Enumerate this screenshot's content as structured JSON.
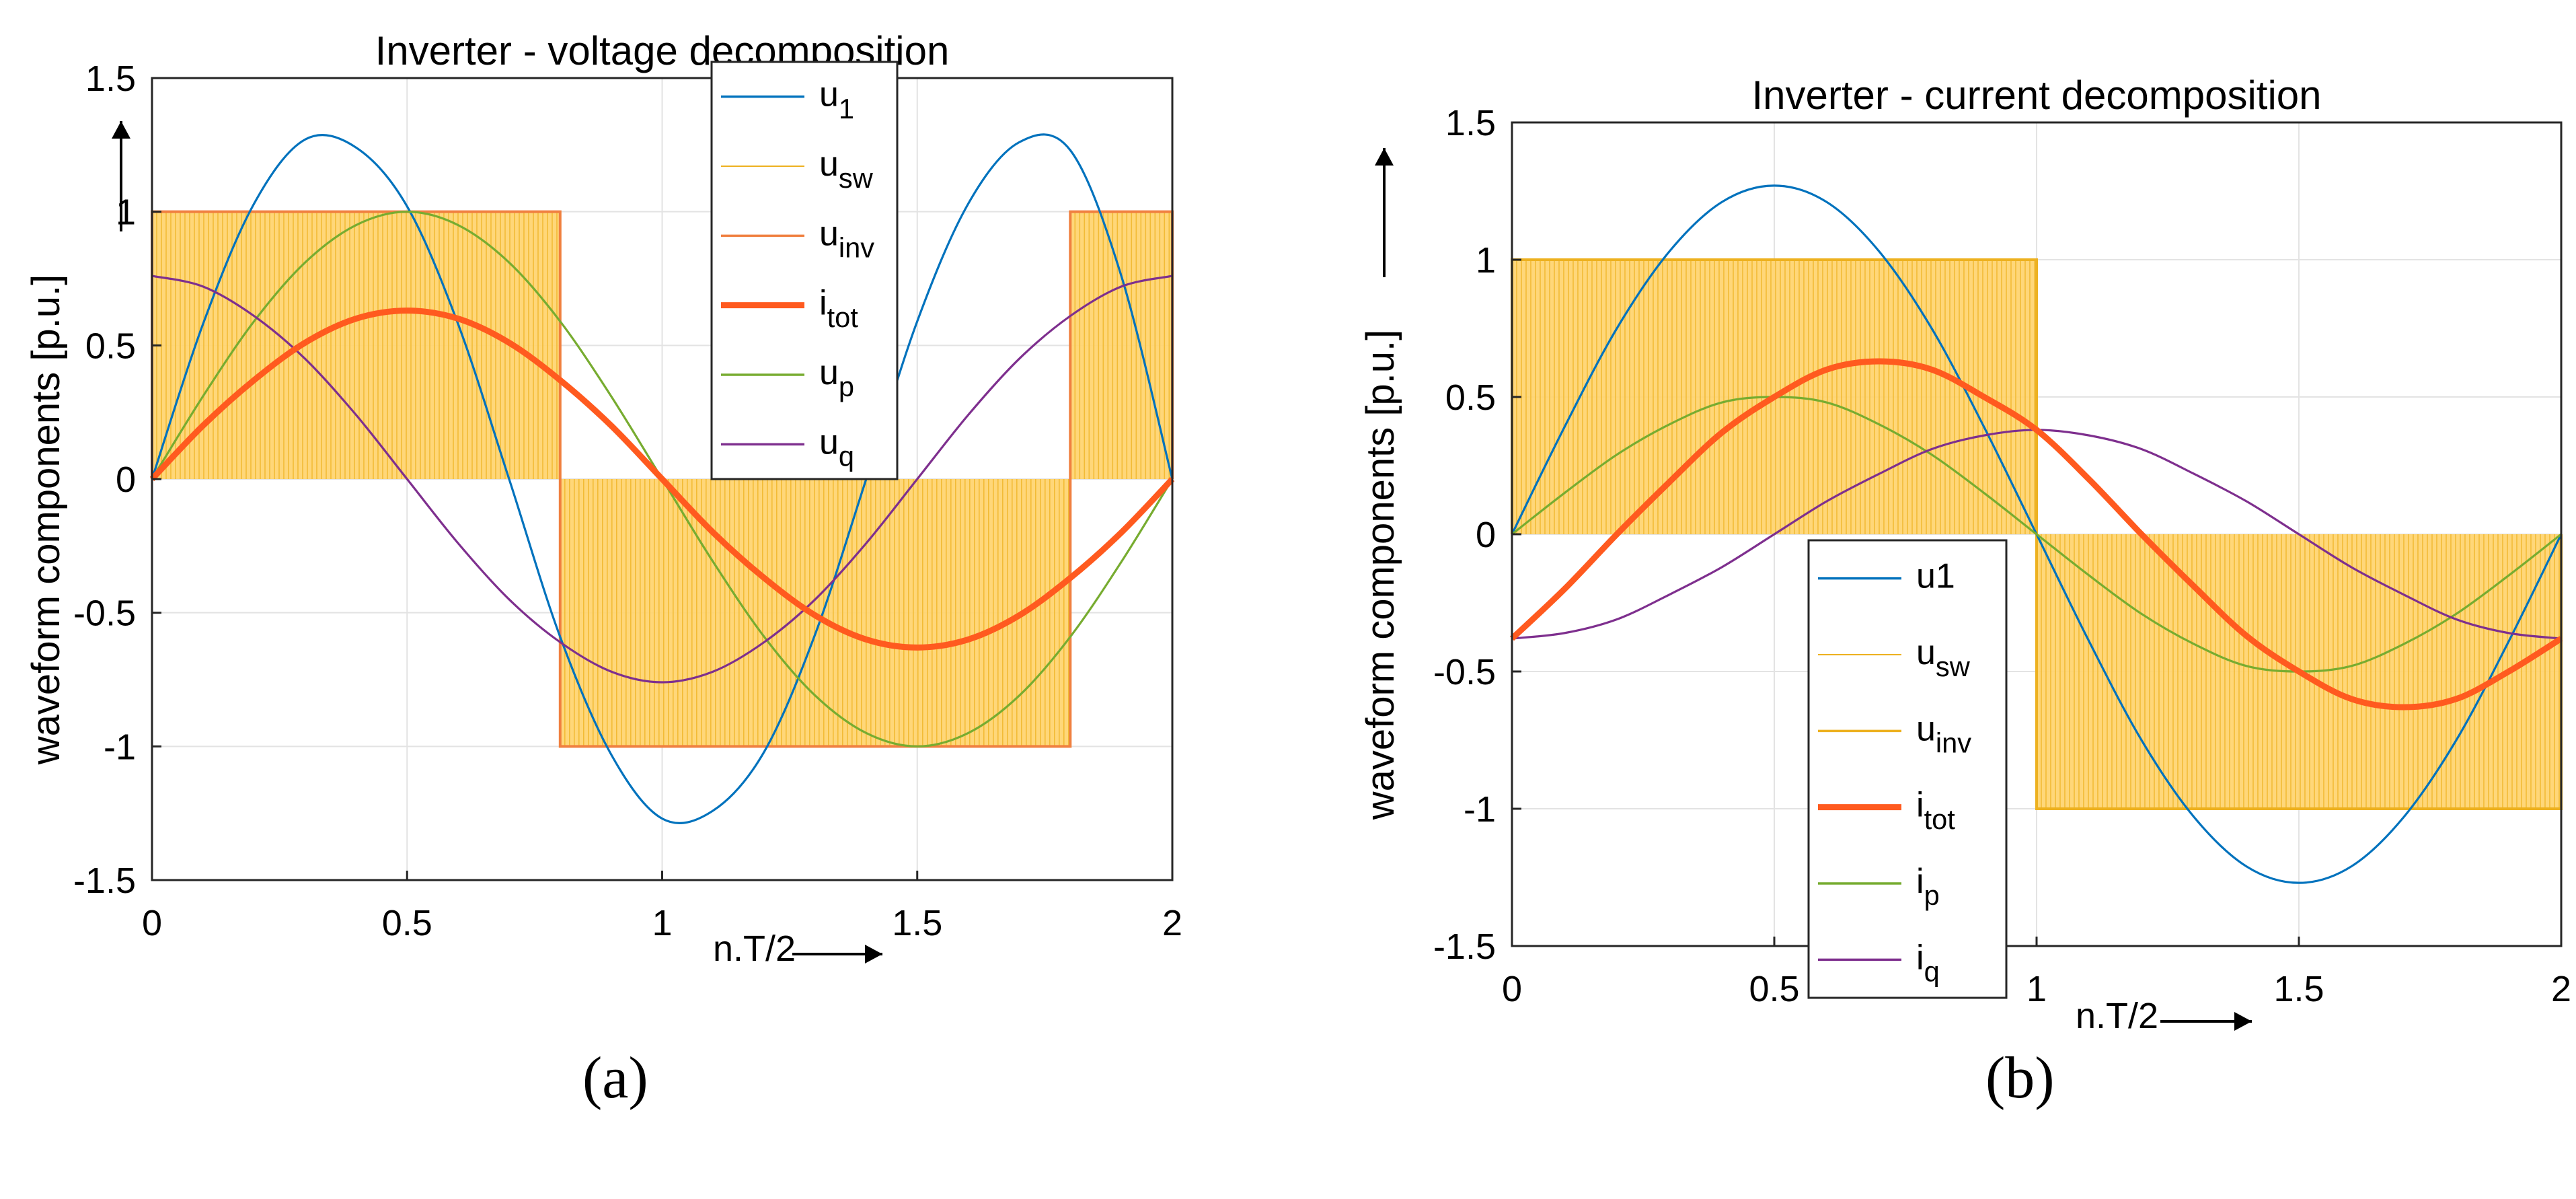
{
  "panel_labels": [
    "(a)",
    "(b)"
  ],
  "chart_data": [
    {
      "type": "line",
      "title": "Inverter - voltage decomposition",
      "xlabel": "n.T/2",
      "ylabel": "waveform components  [p.u.]",
      "xlim": [
        0,
        2
      ],
      "ylim": [
        -1.5,
        1.5
      ],
      "xticks": [
        0,
        0.5,
        1,
        1.5,
        2
      ],
      "xtick_labels": [
        "0",
        "0.5",
        "1",
        "1.5",
        "2"
      ],
      "yticks": [
        -1.5,
        -1,
        -0.5,
        0,
        0.5,
        1,
        1.5
      ],
      "ytick_labels": [
        "-1.5",
        "-1",
        "-0.5",
        "0",
        "0.5",
        "1",
        "1.5"
      ],
      "grid": true,
      "legend_position": "top-center",
      "x": [
        0,
        0.1,
        0.2,
        0.3,
        0.4,
        0.5,
        0.6,
        0.7,
        0.8,
        0.9,
        1.0,
        1.1,
        1.2,
        1.3,
        1.4,
        1.5,
        1.6,
        1.7,
        1.8,
        1.9,
        2.0
      ],
      "series": [
        {
          "name": "u_1",
          "legend": {
            "base": "u",
            "sub": "1"
          },
          "color": "#0072BD",
          "width": "normal",
          "values": [
            0,
            0.58,
            1.03,
            1.27,
            1.24,
            1.02,
            0.58,
            0.0,
            -0.59,
            -1.03,
            -1.27,
            -1.24,
            -1.02,
            -0.58,
            0.0,
            0.59,
            1.03,
            1.26,
            1.23,
            0.76,
            0
          ]
        },
        {
          "name": "u_p",
          "legend": {
            "base": "u",
            "sub": "p"
          },
          "color": "#77AC30",
          "width": "normal",
          "values": [
            0,
            0.31,
            0.59,
            0.81,
            0.95,
            1.0,
            0.95,
            0.81,
            0.59,
            0.31,
            0,
            -0.31,
            -0.59,
            -0.81,
            -0.95,
            -1.0,
            -0.95,
            -0.81,
            -0.59,
            -0.31,
            0
          ]
        },
        {
          "name": "u_q",
          "legend": {
            "base": "u",
            "sub": "q"
          },
          "color": "#7E2F8E",
          "width": "normal",
          "values": [
            0.76,
            0.72,
            0.61,
            0.45,
            0.24,
            0.0,
            -0.24,
            -0.45,
            -0.61,
            -0.72,
            -0.76,
            -0.72,
            -0.61,
            -0.45,
            -0.24,
            0.0,
            0.24,
            0.45,
            0.61,
            0.72,
            0.76
          ]
        },
        {
          "name": "i_tot",
          "legend": {
            "base": "i",
            "sub": "tot"
          },
          "color": "#FF5A1F",
          "width": "thick",
          "values": [
            0,
            0.2,
            0.37,
            0.51,
            0.6,
            0.63,
            0.6,
            0.51,
            0.37,
            0.2,
            0,
            -0.2,
            -0.37,
            -0.51,
            -0.6,
            -0.63,
            -0.6,
            -0.51,
            -0.37,
            -0.2,
            0
          ]
        },
        {
          "name": "u_sw",
          "legend": {
            "base": "u",
            "sub": "sw"
          },
          "color": "#EDB120",
          "width": "fill",
          "intervals": [
            {
              "from": 0,
              "to": 0.8,
              "value": 1
            },
            {
              "from": 0.8,
              "to": 1.8,
              "value": -1
            },
            {
              "from": 1.8,
              "to": 2,
              "value": 1
            }
          ]
        },
        {
          "name": "u_inv",
          "legend": {
            "base": "u",
            "sub": "inv"
          },
          "color": "#F08040",
          "width": "outline",
          "intervals": [
            {
              "from": 0,
              "to": 0.8,
              "value": 1
            },
            {
              "from": 0.8,
              "to": 1.8,
              "value": -1
            },
            {
              "from": 1.8,
              "to": 2,
              "value": 1
            }
          ]
        }
      ],
      "legend_order": [
        "u_1",
        "u_sw",
        "u_inv",
        "i_tot",
        "u_p",
        "u_q"
      ]
    },
    {
      "type": "line",
      "title": "Inverter - current decomposition",
      "xlabel": "n.T/2",
      "ylabel": "waveform components  [p.u.]",
      "xlim": [
        0,
        2
      ],
      "ylim": [
        -1.5,
        1.5
      ],
      "xticks": [
        0,
        0.5,
        1,
        1.5,
        2
      ],
      "xtick_labels": [
        "0",
        "0.5",
        "1",
        "1.5",
        "2"
      ],
      "yticks": [
        -1.5,
        -1,
        -0.5,
        0,
        0.5,
        1,
        1.5
      ],
      "ytick_labels": [
        "-1.5",
        "-1",
        "-0.5",
        "0",
        "0.5",
        "1",
        "1.5"
      ],
      "grid": true,
      "legend_position": "bottom-center",
      "x": [
        0,
        0.1,
        0.2,
        0.3,
        0.4,
        0.5,
        0.6,
        0.7,
        0.8,
        0.9,
        1.0,
        1.1,
        1.2,
        1.3,
        1.4,
        1.5,
        1.6,
        1.7,
        1.8,
        1.9,
        2.0
      ],
      "series": [
        {
          "name": "u1",
          "legend": {
            "base": "u1",
            "sub": ""
          },
          "color": "#0072BD",
          "width": "normal",
          "values": [
            0,
            0.39,
            0.75,
            1.03,
            1.21,
            1.27,
            1.21,
            1.03,
            0.75,
            0.39,
            0,
            -0.39,
            -0.75,
            -1.03,
            -1.21,
            -1.27,
            -1.21,
            -1.03,
            -0.75,
            -0.39,
            0
          ]
        },
        {
          "name": "i_p",
          "legend": {
            "base": "i",
            "sub": "p"
          },
          "color": "#77AC30",
          "width": "normal",
          "values": [
            0,
            0.15,
            0.29,
            0.4,
            0.48,
            0.5,
            0.48,
            0.4,
            0.29,
            0.15,
            0,
            -0.15,
            -0.29,
            -0.4,
            -0.48,
            -0.5,
            -0.48,
            -0.4,
            -0.29,
            -0.15,
            0
          ]
        },
        {
          "name": "i_q",
          "legend": {
            "base": "i",
            "sub": "q"
          },
          "color": "#7E2F8E",
          "width": "normal",
          "values": [
            -0.38,
            -0.36,
            -0.31,
            -0.22,
            -0.12,
            0,
            0.12,
            0.22,
            0.31,
            0.36,
            0.38,
            0.36,
            0.31,
            0.22,
            0.12,
            0,
            -0.12,
            -0.22,
            -0.31,
            -0.36,
            -0.38
          ]
        },
        {
          "name": "i_tot",
          "legend": {
            "base": "i",
            "sub": "tot"
          },
          "color": "#FF5A1F",
          "width": "thick",
          "values": [
            -0.38,
            -0.2,
            0.0,
            0.19,
            0.37,
            0.5,
            0.6,
            0.63,
            0.6,
            0.5,
            0.38,
            0.2,
            0.0,
            -0.19,
            -0.37,
            -0.5,
            -0.6,
            -0.63,
            -0.6,
            -0.5,
            -0.38
          ]
        },
        {
          "name": "u_sw",
          "legend": {
            "base": "u",
            "sub": "sw"
          },
          "color": "#EDB120",
          "width": "fill",
          "intervals": [
            {
              "from": 0,
              "to": 1,
              "value": 1
            },
            {
              "from": 1,
              "to": 2,
              "value": -1
            }
          ]
        },
        {
          "name": "u_inv",
          "legend": {
            "base": "u",
            "sub": "inv"
          },
          "color": "#EDB120",
          "width": "outline",
          "intervals": [
            {
              "from": 0,
              "to": 1,
              "value": 1
            },
            {
              "from": 1,
              "to": 2,
              "value": -1
            }
          ]
        }
      ],
      "legend_order": [
        "u1",
        "u_sw",
        "u_inv",
        "i_tot",
        "i_p",
        "i_q"
      ]
    }
  ]
}
